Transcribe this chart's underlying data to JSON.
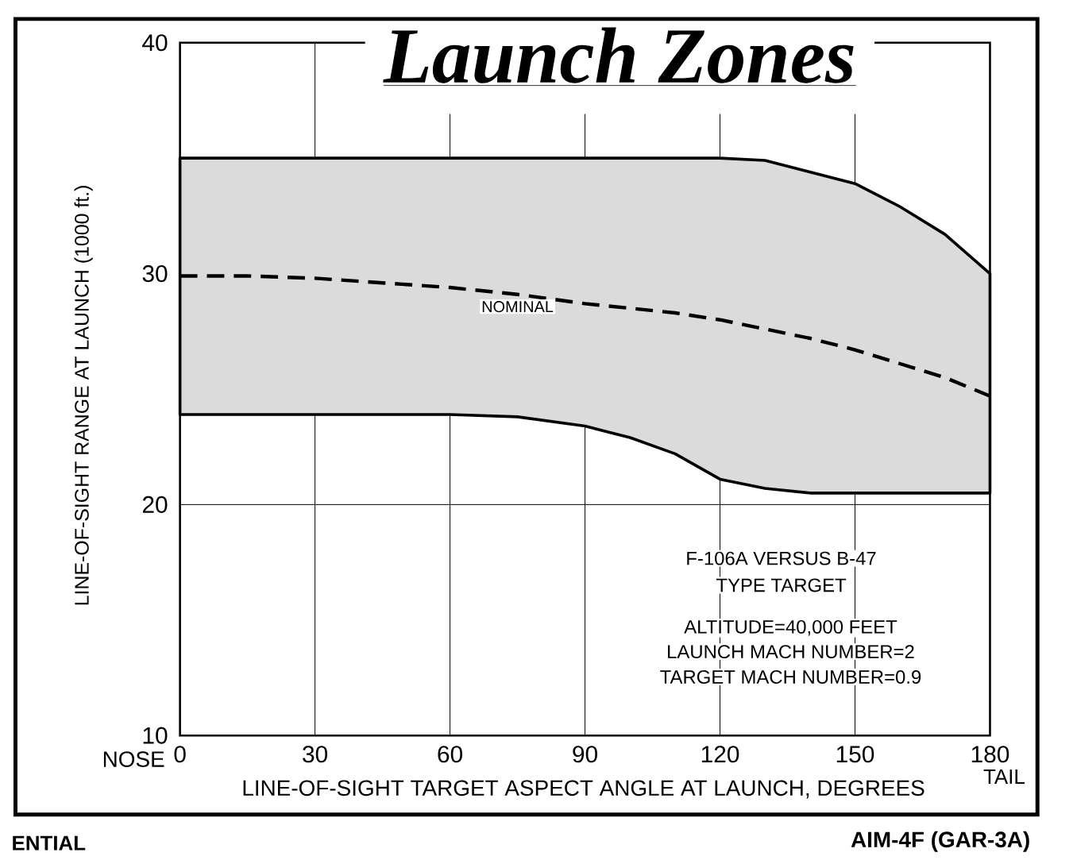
{
  "chart_data": {
    "type": "line",
    "title": "Launch Zones",
    "xlabel": "LINE-OF-SIGHT TARGET ASPECT ANGLE AT LAUNCH, DEGREES",
    "ylabel": "LINE-OF-SIGHT RANGE AT LAUNCH (1000 ft.)",
    "x": [
      0,
      15,
      30,
      45,
      60,
      75,
      90,
      100,
      110,
      120,
      130,
      140,
      150,
      160,
      170,
      180
    ],
    "series": [
      {
        "name": "NOMINAL",
        "color": "#000000",
        "values": [
          29.9,
          29.9,
          29.8,
          29.6,
          29.4,
          29.1,
          28.7,
          28.5,
          28.3,
          28.0,
          27.6,
          27.2,
          26.7,
          26.1,
          25.5,
          24.7
        ],
        "upper": [
          35,
          35,
          35,
          35,
          35,
          35,
          35,
          35,
          35,
          35,
          34.9,
          34.4,
          33.9,
          32.9,
          31.7,
          30.0
        ],
        "lower": [
          23.9,
          23.9,
          23.9,
          23.9,
          23.9,
          23.8,
          23.4,
          22.9,
          22.2,
          21.1,
          20.7,
          20.5,
          20.5,
          20.5,
          20.5,
          20.5
        ]
      }
    ],
    "xlim": [
      0,
      180
    ],
    "ylim": [
      10,
      40
    ],
    "xticks": [
      0,
      30,
      60,
      90,
      120,
      150,
      180
    ],
    "yticks": [
      10,
      20,
      30,
      40
    ],
    "grid": true,
    "marker": "none",
    "line_style": "dashed",
    "annotations": [
      "NOSE",
      "TAIL",
      "F-106A VERSUS B-47",
      "TYPE TARGET",
      "ALTITUDE=40,000 FEET",
      "LAUNCH MACH NUMBER=2",
      "TARGET MACH NUMBER=0.9",
      "ENTIAL",
      "AIM-4F (GAR-3A)"
    ]
  }
}
